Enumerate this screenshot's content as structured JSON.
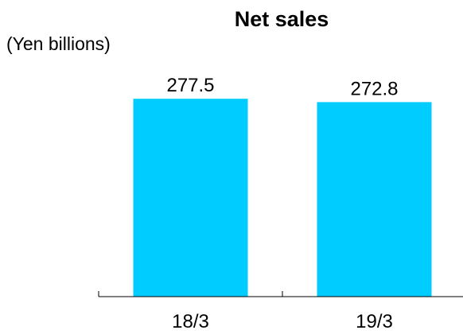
{
  "chart_data": {
    "type": "bar",
    "title": "Net sales",
    "unit_label": "(Yen billions)",
    "xlabel": "",
    "ylabel": "",
    "categories": [
      "18/3",
      "19/3"
    ],
    "values": [
      277.5,
      272.8
    ],
    "value_labels": [
      "277.5",
      "272.8"
    ],
    "ylim": [
      0,
      300
    ],
    "grid": false,
    "legend": "none",
    "bar_color": "#00ccff",
    "axis_color": "#000000"
  }
}
